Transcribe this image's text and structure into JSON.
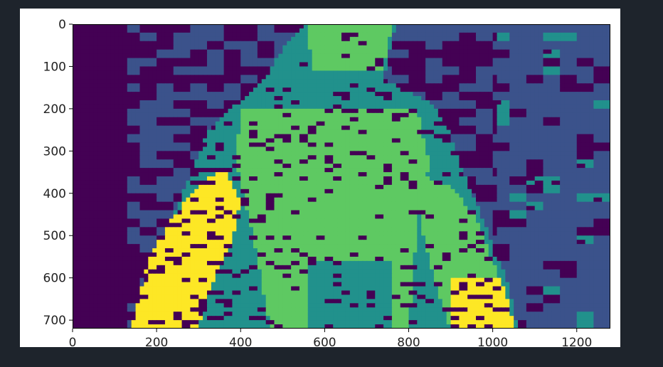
{
  "chart_data": {
    "type": "heatmap",
    "title": "",
    "xlabel": "",
    "ylabel": "",
    "colormap": "viridis",
    "image_width": 1280,
    "image_height": 720,
    "xlim": [
      0,
      1280
    ],
    "ylim": [
      720,
      0
    ],
    "x_ticks": [
      0,
      200,
      400,
      600,
      800,
      1000,
      1200
    ],
    "y_ticks": [
      0,
      100,
      200,
      300,
      400,
      500,
      600,
      700
    ],
    "colors": {
      "level_0": "#440154",
      "level_1": "#3b528b",
      "level_2": "#21918c",
      "level_3": "#5ec962",
      "level_4": "#fde725"
    }
  }
}
